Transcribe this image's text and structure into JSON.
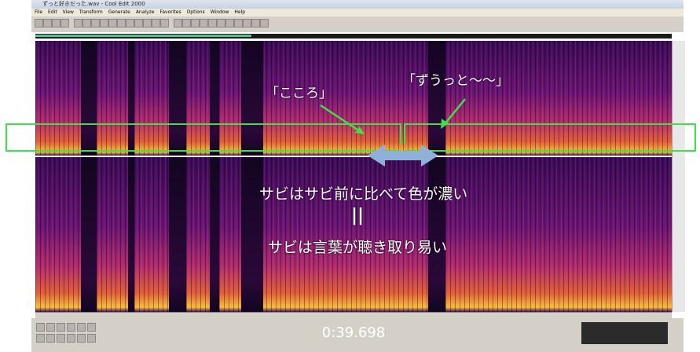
{
  "window": {
    "title": "ずっと好きだった.wav - Cool Edit 2000"
  },
  "menu": [
    "File",
    "Edit",
    "View",
    "Transform",
    "Generate",
    "Analyze",
    "Favorites",
    "Options",
    "Window",
    "Help"
  ],
  "annotations": {
    "label_left": "「こころ」",
    "label_right": "「ずうっと〜〜」",
    "line1": "サビはサビ前に比べて色が濃い",
    "equals": "||",
    "line2": "サビは言葉が聴き取り易い"
  },
  "time_display": "0:39.698"
}
